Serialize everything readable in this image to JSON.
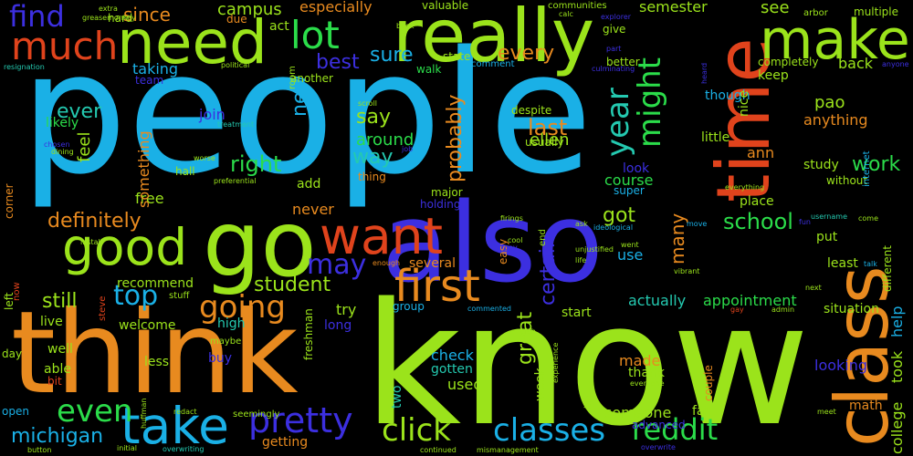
{
  "palette": {
    "background": "#000000",
    "sky": "#1ab0e6",
    "lime": "#9be31b",
    "orange": "#e88a1f",
    "green": "#2bdc4a",
    "blue": "#3c2fe0",
    "red": "#e0431c",
    "teal": "#24c9b0"
  },
  "words": [
    {
      "text": "people"
    },
    {
      "text": "know"
    },
    {
      "text": "think"
    },
    {
      "text": "also"
    },
    {
      "text": "go"
    },
    {
      "text": "really"
    },
    {
      "text": "time"
    },
    {
      "text": "class"
    },
    {
      "text": "need"
    },
    {
      "text": "make"
    },
    {
      "text": "good"
    },
    {
      "text": "want"
    },
    {
      "text": "take"
    },
    {
      "text": "much"
    },
    {
      "text": "lot"
    },
    {
      "text": "first"
    },
    {
      "text": "find"
    },
    {
      "text": "pretty"
    },
    {
      "text": "going"
    },
    {
      "text": "even"
    },
    {
      "text": "classes"
    },
    {
      "text": "click"
    },
    {
      "text": "reddit"
    },
    {
      "text": "top"
    },
    {
      "text": "year"
    },
    {
      "text": "might"
    },
    {
      "text": "may"
    },
    {
      "text": "definitely"
    },
    {
      "text": "right"
    },
    {
      "text": "school"
    },
    {
      "text": "michigan"
    },
    {
      "text": "since"
    },
    {
      "text": "every"
    },
    {
      "text": "sure"
    },
    {
      "text": "best"
    },
    {
      "text": "probably"
    },
    {
      "text": "last"
    },
    {
      "text": "say"
    },
    {
      "text": "way"
    },
    {
      "text": "work"
    },
    {
      "text": "around"
    },
    {
      "text": "student"
    },
    {
      "text": "still"
    },
    {
      "text": "got"
    },
    {
      "text": "certain"
    },
    {
      "text": "great"
    },
    {
      "text": "new"
    },
    {
      "text": "ever"
    },
    {
      "text": "feel"
    },
    {
      "text": "ellen"
    },
    {
      "text": "pao"
    },
    {
      "text": "see"
    },
    {
      "text": "semester"
    },
    {
      "text": "campus"
    },
    {
      "text": "especially"
    },
    {
      "text": "many"
    },
    {
      "text": "appointment"
    },
    {
      "text": "actually"
    },
    {
      "text": "course"
    },
    {
      "text": "free"
    },
    {
      "text": "recommend"
    },
    {
      "text": "try"
    },
    {
      "text": "never"
    },
    {
      "text": "something"
    },
    {
      "text": "join"
    },
    {
      "text": "situation"
    },
    {
      "text": "looking"
    },
    {
      "text": "help"
    },
    {
      "text": "took"
    },
    {
      "text": "college"
    },
    {
      "text": "made"
    },
    {
      "text": "someone"
    },
    {
      "text": "check"
    },
    {
      "text": "used"
    },
    {
      "text": "advanced"
    },
    {
      "text": "anything"
    },
    {
      "text": "study"
    },
    {
      "text": "back"
    },
    {
      "text": "ann"
    },
    {
      "text": "place"
    },
    {
      "text": "look"
    },
    {
      "text": "use"
    },
    {
      "text": "welcome"
    },
    {
      "text": "high"
    },
    {
      "text": "long"
    },
    {
      "text": "live"
    },
    {
      "text": "well"
    },
    {
      "text": "able"
    },
    {
      "text": "less"
    },
    {
      "text": "buy"
    },
    {
      "text": "getting"
    },
    {
      "text": "two"
    },
    {
      "text": "week"
    },
    {
      "text": "gotten"
    },
    {
      "text": "thank"
    },
    {
      "text": "start"
    },
    {
      "text": "group"
    },
    {
      "text": "several"
    },
    {
      "text": "put"
    },
    {
      "text": "least"
    },
    {
      "text": "different"
    },
    {
      "text": "math"
    },
    {
      "text": "couple"
    },
    {
      "text": "far"
    },
    {
      "text": "little"
    },
    {
      "text": "though"
    },
    {
      "text": "nice"
    },
    {
      "text": "keep"
    },
    {
      "text": "completely"
    },
    {
      "text": "better"
    },
    {
      "text": "give"
    },
    {
      "text": "communities"
    },
    {
      "text": "valuable"
    },
    {
      "text": "state"
    },
    {
      "text": "walk"
    },
    {
      "text": "comment"
    },
    {
      "text": "act"
    },
    {
      "text": "hard"
    },
    {
      "text": "due"
    },
    {
      "text": "team"
    },
    {
      "text": "taking"
    },
    {
      "text": "another"
    },
    {
      "text": "room"
    },
    {
      "text": "likely"
    },
    {
      "text": "hall"
    },
    {
      "text": "add"
    },
    {
      "text": "thing"
    },
    {
      "text": "major"
    },
    {
      "text": "holding"
    },
    {
      "text": "super"
    },
    {
      "text": "without"
    },
    {
      "text": "multiple"
    },
    {
      "text": "arbor"
    },
    {
      "text": "heard"
    },
    {
      "text": "internet"
    },
    {
      "text": "anyone"
    },
    {
      "text": "explorer"
    },
    {
      "text": "calc"
    },
    {
      "text": "book"
    },
    {
      "text": "part"
    },
    {
      "text": "culminating"
    },
    {
      "text": "scroll"
    },
    {
      "text": "despite"
    },
    {
      "text": "usually"
    },
    {
      "text": "treatment"
    },
    {
      "text": "chosen"
    },
    {
      "text": "dining"
    },
    {
      "text": "job"
    },
    {
      "text": "worse"
    },
    {
      "text": "preferential"
    },
    {
      "text": "ideological"
    },
    {
      "text": "unjustified"
    },
    {
      "text": "firings"
    },
    {
      "text": "ask"
    },
    {
      "text": "went"
    },
    {
      "text": "life"
    },
    {
      "text": "vibrant"
    },
    {
      "text": "move"
    },
    {
      "text": "fun"
    },
    {
      "text": "username"
    },
    {
      "text": "come"
    },
    {
      "text": "talk"
    },
    {
      "text": "next"
    },
    {
      "text": "admin"
    },
    {
      "text": "gay"
    },
    {
      "text": "meet"
    },
    {
      "text": "overwrite"
    },
    {
      "text": "everyone"
    },
    {
      "text": "experience"
    },
    {
      "text": "big"
    },
    {
      "text": "club"
    },
    {
      "text": "commented"
    },
    {
      "text": "mismanagement"
    },
    {
      "text": "continued"
    },
    {
      "text": "overwriting"
    },
    {
      "text": "initial"
    },
    {
      "text": "button"
    },
    {
      "text": "open"
    },
    {
      "text": "day"
    },
    {
      "text": "bit"
    },
    {
      "text": "left"
    },
    {
      "text": "now"
    },
    {
      "text": "corner"
    },
    {
      "text": "install"
    },
    {
      "text": "extra"
    },
    {
      "text": "greasemonkey"
    },
    {
      "text": "resignation"
    },
    {
      "text": "political"
    },
    {
      "text": "steve"
    },
    {
      "text": "huffman"
    },
    {
      "text": "redact"
    },
    {
      "text": "seemingly"
    },
    {
      "text": "maybe"
    },
    {
      "text": "stuff"
    },
    {
      "text": "freshman"
    },
    {
      "text": "easy"
    },
    {
      "text": "end"
    },
    {
      "text": "pay"
    },
    {
      "text": "everything"
    },
    {
      "text": "enough"
    },
    {
      "text": "cool"
    }
  ]
}
